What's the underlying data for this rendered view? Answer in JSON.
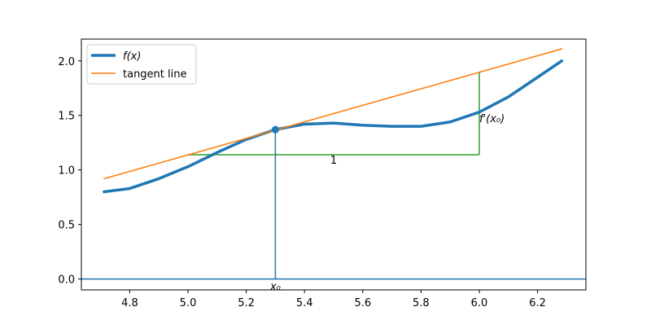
{
  "chart_data": {
    "type": "line",
    "title": "",
    "xlabel": "",
    "ylabel": "",
    "xlim": [
      4.634,
      6.366
    ],
    "ylim": [
      -0.1,
      2.2
    ],
    "xticks": [
      4.8,
      5.0,
      5.2,
      5.4,
      5.6,
      5.8,
      6.0,
      6.2
    ],
    "yticks": [
      0.0,
      0.5,
      1.0,
      1.5,
      2.0
    ],
    "xtick_labels": [
      "4.8",
      "5.0",
      "5.2",
      "5.4",
      "5.6",
      "5.8",
      "6.0",
      "6.2"
    ],
    "ytick_labels": [
      "0.0",
      "0.5",
      "1.0",
      "1.5",
      "2.0"
    ],
    "grid": false,
    "legend_position": "top-left",
    "series": [
      {
        "name": "f(x)",
        "color": "#1f77b4",
        "x": [
          4.712,
          4.8,
          4.9,
          5.0,
          5.1,
          5.2,
          5.3,
          5.4,
          5.5,
          5.6,
          5.7,
          5.8,
          5.9,
          6.0,
          6.1,
          6.2,
          6.283
        ],
        "y": [
          0.8,
          0.83,
          0.92,
          1.03,
          1.16,
          1.28,
          1.37,
          1.42,
          1.43,
          1.41,
          1.4,
          1.4,
          1.44,
          1.53,
          1.67,
          1.85,
          2.0
        ]
      },
      {
        "name": "tangent line",
        "color": "#ff7f0e",
        "x": [
          4.712,
          6.283
        ],
        "y": [
          0.92,
          2.11
        ]
      }
    ],
    "annotations": {
      "point": {
        "x": 5.3,
        "y": 1.37,
        "color": "#1f77b4"
      },
      "vertical_line": {
        "x": 5.3,
        "y_from": 0.0,
        "y_to": 1.37,
        "color": "#1f77b4"
      },
      "horizontal_axis_line": {
        "y": 0.0,
        "color": "#1f77b4"
      },
      "slope_triangle": {
        "color": "#2ca02c",
        "x_from": 5.0,
        "x_to": 6.0,
        "y_base": 1.14,
        "y_top": 1.9,
        "run_label": "1",
        "run_label_x": 5.5,
        "rise_label": "f'(x₀)",
        "rise_label_x": 6.0,
        "rise_label_y": 1.44
      },
      "x0_label": "x₀"
    }
  }
}
